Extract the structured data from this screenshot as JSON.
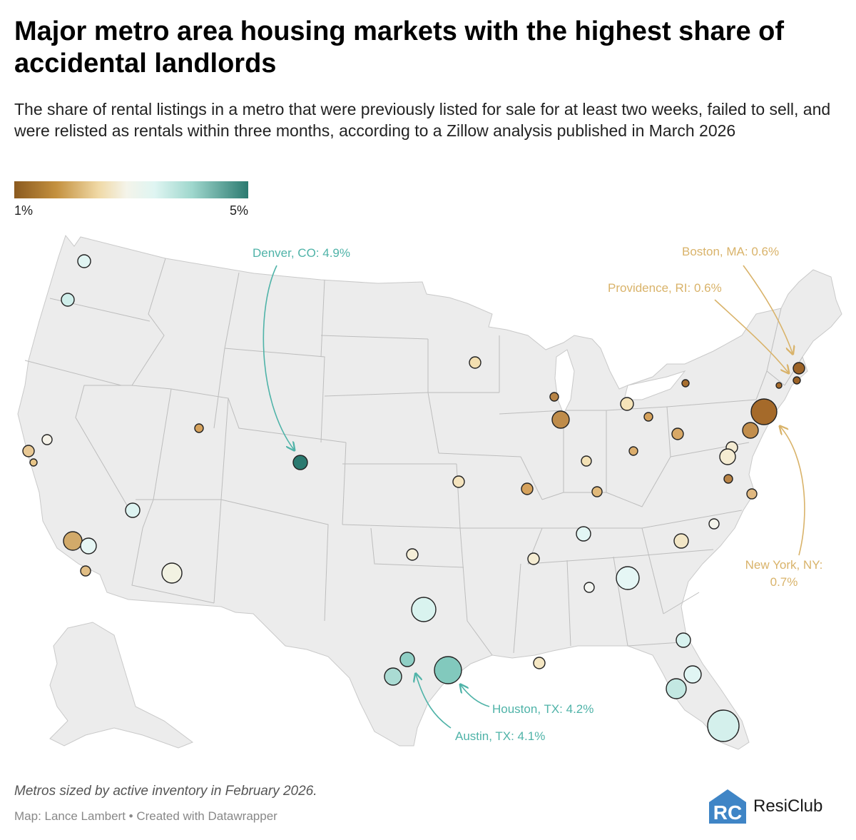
{
  "header": {
    "title": "Major metro area housing markets with the highest share of accidental landlords",
    "subtitle": "The share of rental listings in a metro that were previously listed for sale for at least two weeks, failed to sell, and were relisted as rentals within three months, according to a Zillow analysis published in March 2026"
  },
  "legend": {
    "min_label": "1%",
    "max_label": "5%"
  },
  "colors": {
    "low": "#8b5a1f",
    "mid": "#f4f4ea",
    "high": "#2b7a70",
    "annotation_teal": "#4fb3a8",
    "annotation_gold": "#d9b36a",
    "land": "#ececec",
    "borders": "#b9b9b9",
    "brand_blue": "#3f85c6"
  },
  "map": {
    "annotations": [
      {
        "id": "denver",
        "label": "Denver, CO: 4.9%"
      },
      {
        "id": "boston",
        "label": "Boston, MA: 0.6%"
      },
      {
        "id": "providence",
        "label": "Providence, RI: 0.6%"
      },
      {
        "id": "newyork",
        "label_line1": "New York, NY:",
        "label_line2": "0.7%"
      },
      {
        "id": "houston",
        "label": "Houston, TX: 4.2%"
      },
      {
        "id": "austin",
        "label": "Austin, TX: 4.1%"
      }
    ]
  },
  "chart_data": {
    "type": "bubble-map",
    "title": "Major metro area housing markets with the highest share of accidental landlords",
    "color_metric": "Share of rental listings previously listed for sale (%)",
    "size_metric": "Active inventory in February 2026",
    "color_range": [
      1,
      5
    ],
    "labeled_values": [
      {
        "metro": "Denver, CO",
        "share": 4.9
      },
      {
        "metro": "Houston, TX",
        "share": 4.2
      },
      {
        "metro": "Austin, TX",
        "share": 4.1
      },
      {
        "metro": "New York, NY",
        "share": 0.7
      },
      {
        "metro": "Boston, MA",
        "share": 0.6
      },
      {
        "metro": "Providence, RI",
        "share": 0.6
      }
    ]
  },
  "footer": {
    "notes": "Metros sized by active inventory in February 2026.",
    "credit": "Map: Lance Lambert • Created with Datawrapper",
    "brand_name": "ResiClub"
  }
}
